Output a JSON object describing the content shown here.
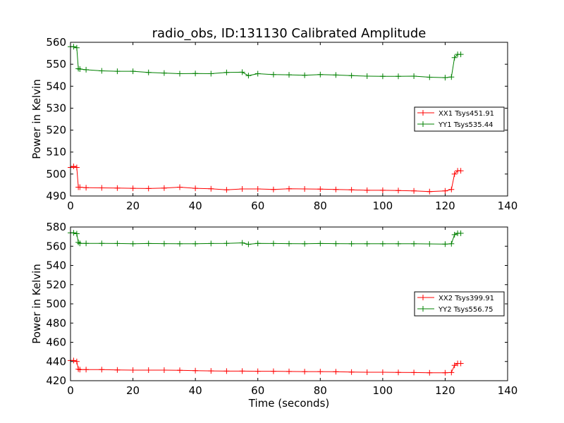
{
  "chart_data": [
    {
      "type": "line",
      "title": "radio_obs, ID:131130 Calibrated Amplitude",
      "xlabel": "",
      "ylabel": "Power in Kelvin",
      "xlim": [
        0,
        140
      ],
      "ylim": [
        490,
        560
      ],
      "xticks": [
        "0",
        "20",
        "40",
        "60",
        "80",
        "100",
        "120",
        "140"
      ],
      "yticks": [
        "490",
        "500",
        "510",
        "520",
        "530",
        "540",
        "550",
        "560"
      ],
      "legend_placement": "center-right",
      "series": [
        {
          "name": "XX1 Tsys451.91",
          "color": "#ff0000",
          "x": [
            0,
            1,
            2,
            2.5,
            3,
            5,
            10,
            15,
            20,
            25,
            30,
            35,
            40,
            45,
            50,
            55,
            60,
            65,
            70,
            75,
            80,
            85,
            90,
            95,
            100,
            105,
            110,
            115,
            120,
            122,
            123,
            124,
            125
          ],
          "y": [
            503,
            503.5,
            503,
            494,
            494,
            493.8,
            493.7,
            493.6,
            493.5,
            493.4,
            493.6,
            494,
            493.5,
            493.3,
            492.8,
            493.2,
            493.2,
            493,
            493.3,
            493.2,
            493.1,
            493,
            492.8,
            492.6,
            492.6,
            492.5,
            492.3,
            492,
            492.3,
            493,
            500,
            501.5,
            501.5
          ]
        },
        {
          "name": "YY1 Tsys535.44",
          "color": "#008000",
          "x": [
            0,
            1,
            2,
            2.5,
            3,
            5,
            10,
            15,
            20,
            25,
            30,
            35,
            40,
            45,
            50,
            55,
            57,
            60,
            65,
            70,
            75,
            80,
            85,
            90,
            95,
            100,
            105,
            110,
            115,
            120,
            122,
            123,
            124,
            125
          ],
          "y": [
            558,
            558,
            557.5,
            548,
            547.8,
            547.5,
            547,
            546.8,
            546.8,
            546.3,
            546,
            545.7,
            545.8,
            545.7,
            546.3,
            546.4,
            544.8,
            545.7,
            545.3,
            545.2,
            545,
            545.3,
            545.1,
            544.8,
            544.6,
            544.5,
            544.5,
            544.6,
            544.1,
            543.9,
            544.2,
            553,
            554.5,
            554.5
          ]
        }
      ]
    },
    {
      "type": "line",
      "title": "",
      "xlabel": "Time (seconds)",
      "ylabel": "Power in Kelvin",
      "xlim": [
        0,
        140
      ],
      "ylim": [
        420,
        580
      ],
      "xticks": [
        "0",
        "20",
        "40",
        "60",
        "80",
        "100",
        "120",
        "140"
      ],
      "yticks": [
        "420",
        "440",
        "460",
        "480",
        "500",
        "520",
        "540",
        "560",
        "580"
      ],
      "legend_placement": "center-right",
      "series": [
        {
          "name": "XX2 Tsys399.91",
          "color": "#ff0000",
          "x": [
            0,
            1,
            2,
            2.5,
            3,
            5,
            10,
            15,
            20,
            25,
            30,
            35,
            40,
            45,
            50,
            55,
            60,
            65,
            70,
            75,
            80,
            85,
            90,
            95,
            100,
            105,
            110,
            115,
            120,
            122,
            123,
            124,
            125
          ],
          "y": [
            441,
            441,
            440,
            432,
            431.5,
            431.5,
            431.5,
            431.2,
            431,
            431,
            431,
            430.8,
            430.5,
            430.2,
            430,
            430,
            429.8,
            429.8,
            429.6,
            429.5,
            429.5,
            429.3,
            429,
            428.8,
            428.8,
            428.6,
            428.5,
            428.3,
            428.3,
            428.5,
            436,
            438,
            438
          ]
        },
        {
          "name": "YY2 Tsys556.75",
          "color": "#008000",
          "x": [
            0,
            1,
            2,
            2.5,
            3,
            5,
            10,
            15,
            20,
            25,
            30,
            35,
            40,
            45,
            50,
            55,
            57,
            60,
            65,
            70,
            75,
            80,
            85,
            90,
            95,
            100,
            105,
            110,
            115,
            120,
            122,
            123,
            124,
            125
          ],
          "y": [
            574,
            574,
            573,
            564,
            563,
            563,
            563,
            562.8,
            562.6,
            562.8,
            562.7,
            562.6,
            562.6,
            562.8,
            563,
            563.5,
            562,
            563,
            562.8,
            562.7,
            562.6,
            562.8,
            562.7,
            562.6,
            562.6,
            562.5,
            562.6,
            562.5,
            562.4,
            562.2,
            562.5,
            572,
            573.5,
            573.5
          ]
        }
      ]
    }
  ]
}
